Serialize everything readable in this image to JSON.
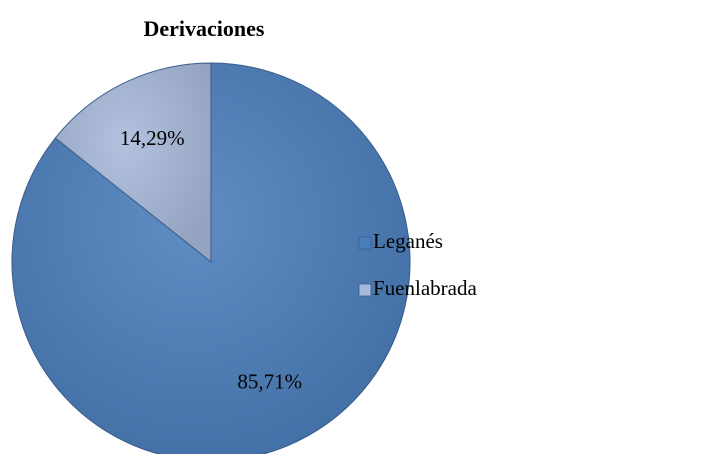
{
  "chart_data": {
    "type": "pie",
    "title": "Derivaciones",
    "categories": [
      "Leganés",
      "Fuenlabrada"
    ],
    "values": [
      85.71,
      14.29
    ],
    "value_labels": [
      "85,71%",
      "14,29%"
    ],
    "colors": [
      "#4a7ebb",
      "#a7b9da"
    ],
    "legend": "right"
  }
}
